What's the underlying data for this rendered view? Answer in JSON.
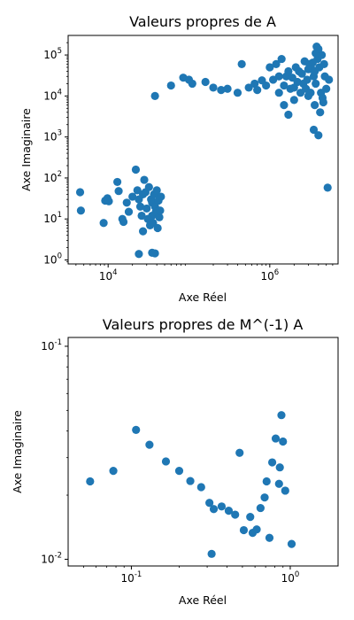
{
  "chart_data": [
    {
      "type": "scatter",
      "title": "Valeurs propres de A",
      "xlabel": "Axe Réel",
      "ylabel": "Axe Imaginaire",
      "xscale": "log",
      "yscale": "log",
      "xlim": [
        3200,
        7000000
      ],
      "ylim": [
        0.8,
        300000
      ],
      "xticks": [
        {
          "value": 10000,
          "label": "10^4"
        },
        {
          "value": 1000000,
          "label": "10^6"
        }
      ],
      "yticks": [
        {
          "value": 1,
          "label": "10^0"
        },
        {
          "value": 10,
          "label": "10^1"
        },
        {
          "value": 100,
          "label": "10^2"
        },
        {
          "value": 1000,
          "label": "10^3"
        },
        {
          "value": 10000,
          "label": "10^4"
        },
        {
          "value": 100000,
          "label": "10^5"
        }
      ],
      "grid": false,
      "color": "#1f77b4",
      "points": [
        [
          4500,
          45
        ],
        [
          4600,
          16
        ],
        [
          8800,
          8
        ],
        [
          9200,
          28
        ],
        [
          9800,
          32
        ],
        [
          10200,
          27
        ],
        [
          13000,
          80
        ],
        [
          13500,
          48
        ],
        [
          15000,
          10
        ],
        [
          15500,
          8.5
        ],
        [
          17000,
          25
        ],
        [
          18000,
          15
        ],
        [
          20000,
          35
        ],
        [
          22000,
          160
        ],
        [
          23000,
          50
        ],
        [
          24000,
          30
        ],
        [
          25000,
          20
        ],
        [
          26000,
          12
        ],
        [
          27000,
          5
        ],
        [
          28000,
          90
        ],
        [
          29000,
          45
        ],
        [
          30000,
          18
        ],
        [
          31000,
          10
        ],
        [
          32000,
          60
        ],
        [
          33000,
          7
        ],
        [
          34000,
          30
        ],
        [
          35000,
          25
        ],
        [
          35000,
          12
        ],
        [
          36000,
          8
        ],
        [
          37000,
          40
        ],
        [
          38000,
          20
        ],
        [
          39000,
          15
        ],
        [
          40000,
          50
        ],
        [
          41000,
          6
        ],
        [
          42000,
          28
        ],
        [
          43000,
          11
        ],
        [
          44000,
          16
        ],
        [
          45000,
          35
        ],
        [
          24000,
          1.4
        ],
        [
          35000,
          1.5
        ],
        [
          38000,
          1.45
        ],
        [
          27000,
          40
        ],
        [
          38000,
          10000
        ],
        [
          60000,
          18000
        ],
        [
          85000,
          28000
        ],
        [
          100000,
          25000
        ],
        [
          110000,
          20000
        ],
        [
          160000,
          22000
        ],
        [
          200000,
          16000
        ],
        [
          250000,
          14000
        ],
        [
          300000,
          15000
        ],
        [
          400000,
          12000
        ],
        [
          450000,
          60000
        ],
        [
          550000,
          16000
        ],
        [
          650000,
          20000
        ],
        [
          700000,
          14000
        ],
        [
          900000,
          18000
        ],
        [
          1100000,
          25000
        ],
        [
          1300000,
          12000
        ],
        [
          1500000,
          6000
        ],
        [
          1700000,
          3500
        ],
        [
          2000000,
          8000
        ],
        [
          2300000,
          40000
        ],
        [
          2600000,
          20000
        ],
        [
          3000000,
          10000
        ],
        [
          3500000,
          1500
        ],
        [
          3800000,
          160000
        ],
        [
          4000000,
          1100
        ],
        [
          4300000,
          12000
        ],
        [
          4800000,
          30000
        ],
        [
          5200000,
          58
        ],
        [
          3600000,
          6000
        ],
        [
          1000000,
          50000
        ],
        [
          1200000,
          60000
        ],
        [
          1400000,
          80000
        ],
        [
          1600000,
          30000
        ],
        [
          1800000,
          15000
        ],
        [
          2100000,
          50000
        ],
        [
          2400000,
          12000
        ],
        [
          2700000,
          70000
        ],
        [
          2900000,
          25000
        ],
        [
          3100000,
          60000
        ],
        [
          3300000,
          45000
        ],
        [
          3500000,
          30000
        ],
        [
          3700000,
          20000
        ],
        [
          3900000,
          80000
        ],
        [
          4100000,
          50000
        ],
        [
          4400000,
          100000
        ],
        [
          4600000,
          7000
        ],
        [
          5000000,
          15000
        ],
        [
          5400000,
          25000
        ],
        [
          1500000,
          18000
        ],
        [
          1700000,
          40000
        ],
        [
          2200000,
          22000
        ],
        [
          2500000,
          35000
        ],
        [
          2800000,
          15000
        ],
        [
          3200000,
          12000
        ],
        [
          3400000,
          65000
        ],
        [
          3600000,
          40000
        ],
        [
          4200000,
          4000
        ],
        [
          4500000,
          9000
        ],
        [
          1300000,
          30000
        ],
        [
          800000,
          24000
        ],
        [
          1900000,
          28000
        ],
        [
          3700000,
          110000
        ],
        [
          4000000,
          140000
        ],
        [
          2000000,
          16000
        ],
        [
          3000000,
          45000
        ],
        [
          4700000,
          60000
        ]
      ]
    },
    {
      "type": "scatter",
      "title": "Valeurs propres de M^(-1) A",
      "xlabel": "Axe Réel",
      "ylabel": "Axe Imaginaire",
      "xscale": "log",
      "yscale": "log",
      "xlim": [
        0.04,
        2
      ],
      "ylim": [
        0.0093,
        0.11
      ],
      "xticks": [
        {
          "value": 0.1,
          "label": "10^-1"
        },
        {
          "value": 1,
          "label": "10^0"
        }
      ],
      "yticks": [
        {
          "value": 0.01,
          "label": "10^-2"
        },
        {
          "value": 0.1,
          "label": "10^-1"
        }
      ],
      "grid": false,
      "color": "#1f77b4",
      "points": [
        [
          0.055,
          0.0232
        ],
        [
          0.077,
          0.026
        ],
        [
          0.107,
          0.0405
        ],
        [
          0.13,
          0.0345
        ],
        [
          0.165,
          0.0288
        ],
        [
          0.2,
          0.026
        ],
        [
          0.235,
          0.0233
        ],
        [
          0.275,
          0.0218
        ],
        [
          0.31,
          0.0184
        ],
        [
          0.33,
          0.0172
        ],
        [
          0.37,
          0.0177
        ],
        [
          0.41,
          0.0169
        ],
        [
          0.45,
          0.0162
        ],
        [
          0.48,
          0.0316
        ],
        [
          0.51,
          0.0137
        ],
        [
          0.56,
          0.0158
        ],
        [
          0.58,
          0.0133
        ],
        [
          0.615,
          0.0138
        ],
        [
          0.65,
          0.0174
        ],
        [
          0.69,
          0.0195
        ],
        [
          0.71,
          0.0232
        ],
        [
          0.74,
          0.0126
        ],
        [
          0.77,
          0.0285
        ],
        [
          0.81,
          0.0369
        ],
        [
          0.85,
          0.0226
        ],
        [
          0.86,
          0.027
        ],
        [
          0.88,
          0.0475
        ],
        [
          0.9,
          0.0357
        ],
        [
          0.93,
          0.021
        ],
        [
          1.02,
          0.0118
        ],
        [
          0.32,
          0.0106
        ]
      ]
    }
  ]
}
